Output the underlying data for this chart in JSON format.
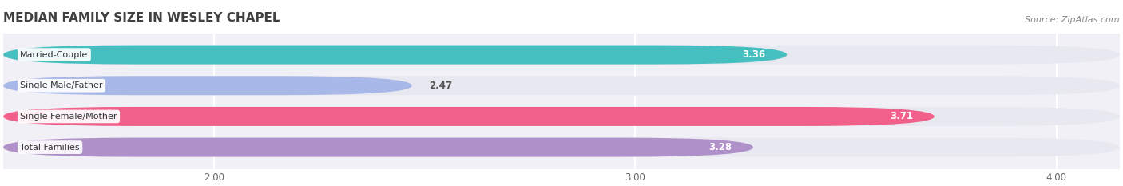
{
  "title": "MEDIAN FAMILY SIZE IN WESLEY CHAPEL",
  "source": "Source: ZipAtlas.com",
  "categories": [
    "Married-Couple",
    "Single Male/Father",
    "Single Female/Mother",
    "Total Families"
  ],
  "values": [
    3.36,
    2.47,
    3.71,
    3.28
  ],
  "bar_colors": [
    "#45bfc0",
    "#a8b8e8",
    "#f0608a",
    "#b090c8"
  ],
  "label_colors": [
    "white",
    "#555555",
    "white",
    "white"
  ],
  "bar_track_color": "#e8e8f0",
  "figure_bg": "#ffffff",
  "chart_bg": "#f0f0f6",
  "xlim_min": 1.5,
  "xlim_max": 4.15,
  "data_min": 2.0,
  "xticks": [
    2.0,
    3.0,
    4.0
  ],
  "xticklabels": [
    "2.00",
    "3.00",
    "4.00"
  ],
  "title_fontsize": 11,
  "source_fontsize": 8,
  "bar_label_fontsize": 8.5,
  "category_fontsize": 8,
  "bar_height": 0.62,
  "figsize": [
    14.06,
    2.33
  ],
  "dpi": 100
}
